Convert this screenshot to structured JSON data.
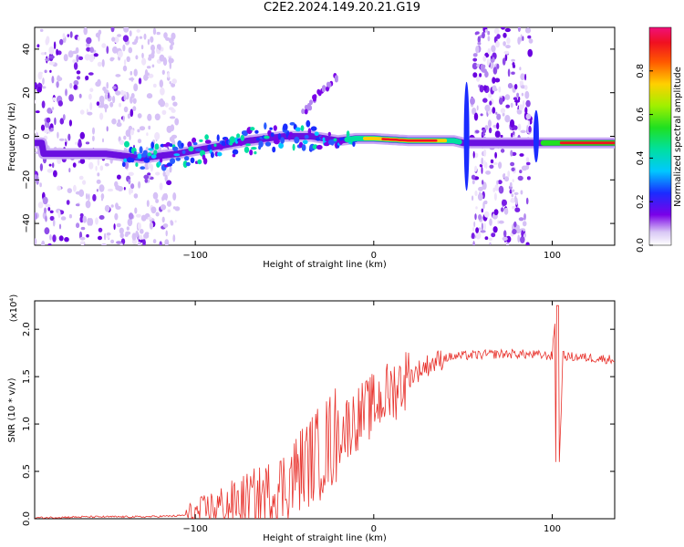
{
  "title": "C2E2.2024.149.20.21.G19",
  "chart_data": [
    {
      "type": "heatmap",
      "xlabel": "Height of straight line (km)",
      "ylabel": "Frequency (Hz)",
      "xlim": [
        -190,
        135
      ],
      "ylim": [
        -50,
        50
      ],
      "xticks": [
        -100,
        0,
        100
      ],
      "yticks": [
        -40,
        -20,
        0,
        20,
        40
      ],
      "colorbar": {
        "label": "Normalized spectral amplitude",
        "range": [
          0,
          1
        ],
        "ticks": [
          0.0,
          0.2,
          0.4,
          0.6,
          0.8
        ]
      },
      "ridge": [
        {
          "x": -185,
          "y": -8
        },
        {
          "x": -150,
          "y": -8
        },
        {
          "x": -130,
          "y": -10
        },
        {
          "x": -110,
          "y": -8
        },
        {
          "x": -90,
          "y": -5
        },
        {
          "x": -70,
          "y": -2
        },
        {
          "x": -50,
          "y": 0
        },
        {
          "x": -35,
          "y": 0
        },
        {
          "x": -20,
          "y": -2
        },
        {
          "x": -10,
          "y": -1
        },
        {
          "x": 0,
          "y": -1
        },
        {
          "x": 20,
          "y": -2
        },
        {
          "x": 45,
          "y": -2
        },
        {
          "x": 50,
          "y": -3
        },
        {
          "x": 95,
          "y": -3
        },
        {
          "x": 135,
          "y": -3
        }
      ],
      "branch": [
        {
          "x": -40,
          "y": 10
        },
        {
          "x": -30,
          "y": 20
        },
        {
          "x": -20,
          "y": 28
        }
      ],
      "noise_bands": [
        [
          -190,
          -110
        ],
        [
          55,
          88
        ]
      ]
    },
    {
      "type": "line",
      "xlabel": "Height of straight line (km)",
      "ylabel": "SNR (10 * v/v)",
      "yscale_label": "(x10⁴)",
      "xlim": [
        -190,
        135
      ],
      "ylim": [
        0,
        2.3
      ],
      "xticks": [
        -100,
        0,
        100
      ],
      "yticks": [
        0.0,
        0.5,
        1.0,
        1.5,
        2.0
      ],
      "color": "#e8332d",
      "series": [
        {
          "x": [
            -190,
            -160,
            -130,
            -110,
            -100,
            -90,
            -80,
            -70,
            -60,
            -50,
            -40,
            -30,
            -20,
            -10,
            0,
            10,
            20,
            30,
            40,
            50,
            60,
            70,
            80,
            90,
            100,
            102,
            104,
            106,
            110,
            120,
            135
          ],
          "y": [
            0.01,
            0.02,
            0.02,
            0.03,
            0.05,
            0.12,
            0.15,
            0.2,
            0.25,
            0.35,
            0.55,
            0.7,
            0.9,
            1.05,
            1.2,
            1.35,
            1.5,
            1.62,
            1.7,
            1.72,
            1.73,
            1.74,
            1.74,
            1.73,
            1.72,
            2.2,
            0.6,
            1.72,
            1.71,
            1.7,
            1.68
          ]
        }
      ]
    }
  ]
}
